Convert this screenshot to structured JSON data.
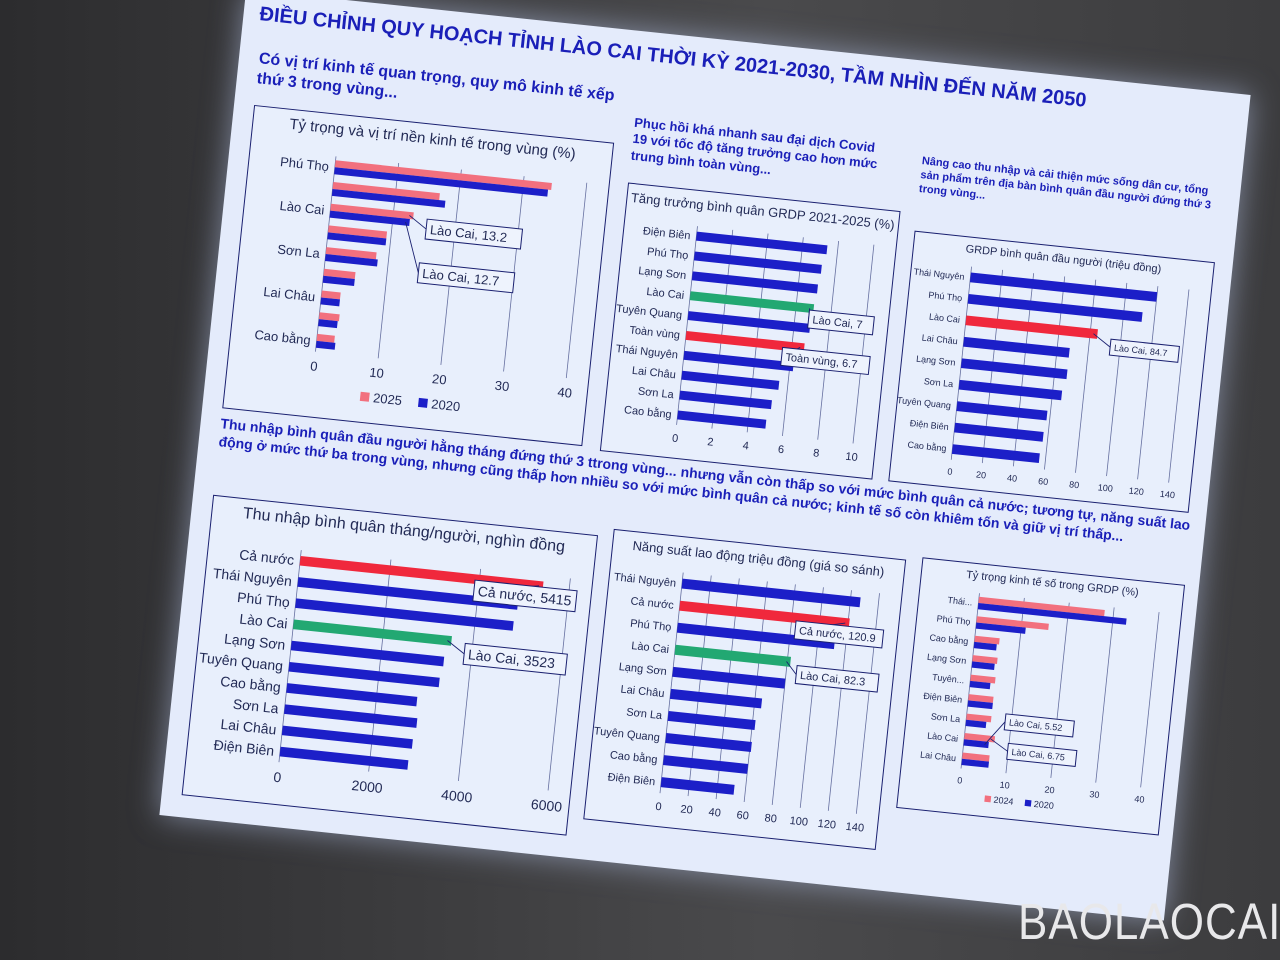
{
  "slide": {
    "title": "ĐIỀU CHỈNH QUY HOẠCH TỈNH LÀO CAI THỜI KỲ 2021-2030, TẦM NHÌN ĐẾN NĂM 2050",
    "heading_1": "Có vị trí kinh tế quan trọng, quy mô kinh tế xếp thứ 3 trong vùng...",
    "heading_2": "Phục hồi khá nhanh sau đại dịch Covid 19 với tốc độ tăng trưởng cao hơn mức trung bình toàn vùng...",
    "heading_3": "Nâng cao thu nhập và cải thiện mức sống dân cư, tổng sản phẩm trên địa bàn bình quân đầu người đứng thứ 3 trong vùng...",
    "heading_4": "Thu nhập bình quân đầu người hằng tháng đứng thứ 3 ttrong vùng... nhưng vẫn còn thấp so với mức bình quân cả nước; tương tự, năng suất lao động ở mức thứ ba trong vùng, nhưng cũng thấp hơn nhiều so với mức bình quân cả nước; kinh tế số còn khiêm tốn và giữ vị trí thấp...",
    "watermark": "BAOLAOCAI"
  },
  "colors": {
    "blue": "#1c1fc8",
    "pink": "#f2707e",
    "red": "#f0283c",
    "green": "#22a872",
    "text": "#1a1fb8"
  },
  "chart_data": [
    {
      "type": "bar",
      "orientation": "horizontal",
      "title": "Tỷ trọng và vị trí nền kinh tế trong vùng (%)",
      "categories": [
        "Phú Thọ",
        "",
        "Lào Cai",
        "",
        "Sơn La",
        "",
        "Lai Châu",
        "",
        "Cao bằng"
      ],
      "series": [
        {
          "name": "2025",
          "color": "#f2707e",
          "values": [
            34.5,
            17,
            13.2,
            9.3,
            8,
            5,
            3,
            3.2,
            2.8
          ]
        },
        {
          "name": "2020",
          "color": "#1c1fc8",
          "values": [
            34,
            18,
            12.7,
            9.3,
            8.3,
            5,
            3,
            3,
            3
          ]
        }
      ],
      "xlim": [
        0,
        40
      ],
      "xticks": [
        0,
        10,
        20,
        30,
        40
      ],
      "grid": true,
      "legend": "bottom",
      "annotations": [
        {
          "text": "Lào Cai, 13.2",
          "category": 2,
          "series": 0
        },
        {
          "text": "Lào Cai, 12.7",
          "category": 2,
          "series": 1
        }
      ]
    },
    {
      "type": "bar",
      "orientation": "horizontal",
      "title": "Tăng trưởng bình quân GRDP 2021-2025 (%)",
      "categories": [
        "Điện Biên",
        "Phú Thọ",
        "Lạng Sơn",
        "Lào Cai",
        "Tuyên Quang",
        "Toàn vùng",
        "Thái Nguyên",
        "Lai Châu",
        "Sơn La",
        "Cao bằng"
      ],
      "series": [
        {
          "color": "#1c1fc8",
          "values": [
            7.4,
            7.2,
            7.1,
            7,
            6.9,
            6.7,
            6.2,
            5.5,
            5.2,
            5.0
          ]
        }
      ],
      "highlight": {
        "Lào Cai": "#22a872",
        "Toàn vùng": "#f0283c"
      },
      "xlim": [
        0,
        10
      ],
      "xticks": [
        0,
        2,
        4,
        6,
        8,
        10
      ],
      "grid": true,
      "annotations": [
        {
          "text": "Lào Cai, 7",
          "category": 3,
          "series": 0
        },
        {
          "text": "Toàn vùng, 6.7",
          "category": 5,
          "series": 0
        }
      ]
    },
    {
      "type": "bar",
      "orientation": "horizontal",
      "title": "GRDP bình quân đầu người (triệu đồng)",
      "categories": [
        "Thái Nguyên",
        "Phú Thọ",
        "Lào Cai",
        "Lai Châu",
        "Lạng Sơn",
        "Sơn La",
        "Tuyên Quang",
        "Điện Biên",
        "Cao bằng"
      ],
      "series": [
        {
          "color": "#1c1fc8",
          "values": [
            120,
            112,
            84.7,
            68,
            68,
            66,
            58,
            57,
            56
          ]
        }
      ],
      "highlight": {
        "Lào Cai": "#f0283c"
      },
      "xlim": [
        0,
        140
      ],
      "xticks": [
        0,
        20,
        40,
        60,
        80,
        100,
        120,
        140
      ],
      "grid": true,
      "annotations": [
        {
          "text": "Lào Cai, 84.7",
          "category": 2,
          "series": 0
        }
      ]
    },
    {
      "type": "bar",
      "orientation": "horizontal",
      "title": "Thu nhập bình quân tháng/người, nghìn đồng",
      "categories": [
        "Cả nước",
        "Thái Nguyên",
        "Phú Thọ",
        "Lào Cai",
        "Lạng Sơn",
        "Tuyên Quang",
        "Cao bằng",
        "Sơn La",
        "Lai Châu",
        "Điện Biên"
      ],
      "series": [
        {
          "color": "#1c1fc8",
          "values": [
            5415,
            4900,
            4850,
            3523,
            3400,
            3350,
            2900,
            2950,
            2900,
            2850
          ]
        }
      ],
      "highlight": {
        "Cả nước": "#f0283c",
        "Lào Cai": "#22a872"
      },
      "xlim": [
        0,
        6000
      ],
      "xticks": [
        0,
        2000,
        4000,
        6000
      ],
      "grid": true,
      "annotations": [
        {
          "text": "Cả nước, 5415",
          "category": 0,
          "series": 0
        },
        {
          "text": "Lào Cai, 3523",
          "category": 3,
          "series": 0
        }
      ]
    },
    {
      "type": "bar",
      "orientation": "horizontal",
      "title": "Năng suất lao động triệu đồng (giá so sánh)",
      "categories": [
        "Thái Nguyên",
        "Cả nước",
        "Phú Thọ",
        "Lào Cai",
        "Lạng Sơn",
        "Lai Châu",
        "Sơn La",
        "Tuyên Quang",
        "Cao bằng",
        "Điện Biên"
      ],
      "series": [
        {
          "color": "#1c1fc8",
          "values": [
            127,
            120.9,
            112,
            82.3,
            80,
            65,
            62,
            61,
            60,
            52
          ]
        }
      ],
      "highlight": {
        "Cả nước": "#f0283c",
        "Lào Cai": "#22a872"
      },
      "xlim": [
        0,
        140
      ],
      "xticks": [
        0,
        20,
        40,
        60,
        80,
        100,
        120,
        140
      ],
      "grid": true,
      "annotations": [
        {
          "text": "Cả nước, 120.9",
          "category": 1,
          "series": 0
        },
        {
          "text": "Lào Cai, 82.3",
          "category": 3,
          "series": 0
        }
      ]
    },
    {
      "type": "bar",
      "orientation": "horizontal",
      "title": "Tỷ trọng kinh tế số trong GRDP (%)",
      "categories": [
        "Thái...",
        "Phú Thọ",
        "Cao bằng",
        "Lạng Sơn",
        "Tuyên...",
        "Điện Biên",
        "Sơn La",
        "Lào Cai",
        "Lai Châu"
      ],
      "series": [
        {
          "name": "2024",
          "color": "#f2707e",
          "values": [
            28,
            16,
            5.5,
            5.5,
            5.5,
            5.5,
            5.5,
            6.75,
            6
          ]
        },
        {
          "name": "2020",
          "color": "#1c1fc8",
          "values": [
            33,
            11,
            5,
            5,
            4.5,
            5.5,
            4.5,
            5.52,
            6
          ]
        }
      ],
      "xlim": [
        0,
        40
      ],
      "xticks": [
        0,
        10,
        20,
        30,
        40
      ],
      "grid": true,
      "legend": "bottom",
      "annotations": [
        {
          "text": "Lào Cai, 6.75",
          "category": 7,
          "series": 0
        },
        {
          "text": "Lào Cai, 5.52",
          "category": 7,
          "series": 1
        }
      ]
    }
  ]
}
